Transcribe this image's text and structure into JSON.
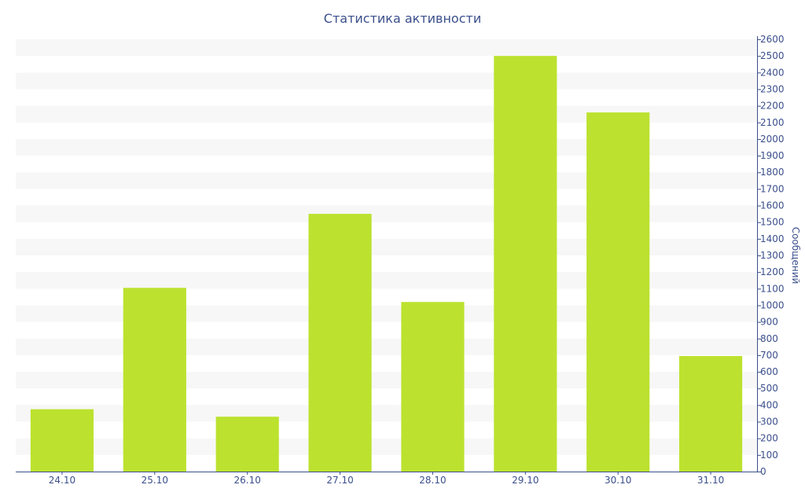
{
  "chart_data": {
    "type": "bar",
    "title": "Статистика активности",
    "xlabel": "",
    "ylabel": "Сообщений",
    "y_axis_side": "right",
    "categories": [
      "24.10",
      "25.10",
      "26.10",
      "27.10",
      "28.10",
      "29.10",
      "30.10",
      "31.10"
    ],
    "series": [
      {
        "values": [
          375,
          1105,
          330,
          1550,
          1020,
          2500,
          2160,
          695
        ]
      }
    ],
    "ylim": [
      0,
      2600
    ],
    "y_ticks": [
      0,
      100,
      200,
      300,
      400,
      500,
      600,
      700,
      800,
      900,
      1000,
      1100,
      1200,
      1300,
      1400,
      1500,
      1600,
      1700,
      1800,
      1900,
      2000,
      2100,
      2200,
      2300,
      2400,
      2500,
      2600
    ],
    "grid": "alternating horizontal bands",
    "legend": "none",
    "colors": {
      "bar": "#bce22f",
      "band": "#f7f7f7",
      "axis": "#3b4f8c",
      "text": "#3b4f8c"
    }
  }
}
